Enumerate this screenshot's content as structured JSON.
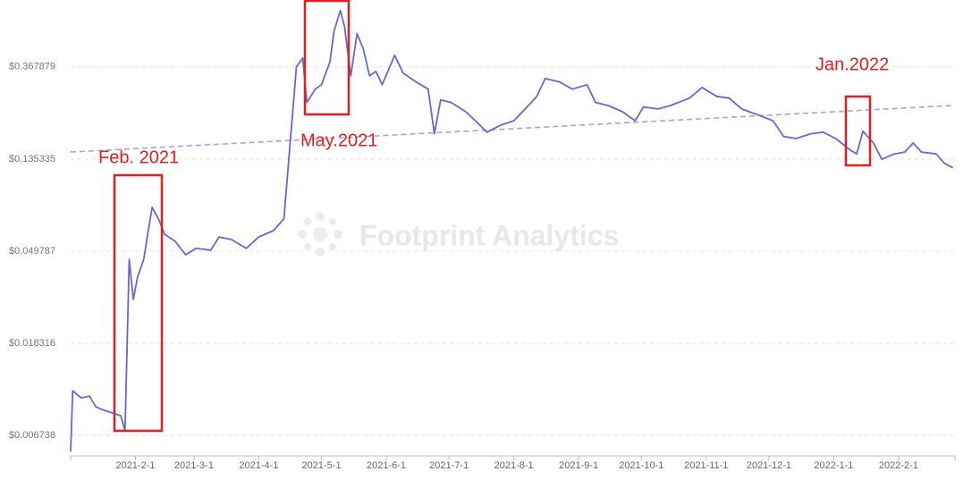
{
  "chart_data": {
    "type": "line",
    "log_y": true,
    "grid": true,
    "color": "#6767d6",
    "watermark": "Footprint Analytics",
    "annotations": [
      "Feb. 2021",
      "May.2021",
      "Jan.2022"
    ],
    "xlim": [
      "2021-1-1",
      "2022-2-28"
    ],
    "xticks": [
      "2021-2-1",
      "2021-3-1",
      "2021-4-1",
      "2021-5-1",
      "2021-6-1",
      "2021-7-1",
      "2021-8-1",
      "2021-9-1",
      "2021-10-1",
      "2021-11-1",
      "2021-12-1",
      "2022-1-1",
      "2022-2-1"
    ],
    "ylim": [
      0.0054,
      0.76
    ],
    "yticks": [
      {
        "value": 0.006738,
        "label": "$0.006738"
      },
      {
        "value": 0.018316,
        "label": "$0.018316"
      },
      {
        "value": 0.049787,
        "label": "$0.049787"
      },
      {
        "value": 0.135335,
        "label": "$0.135335"
      },
      {
        "value": 0.367879,
        "label": "$0.367879"
      }
    ],
    "x": [
      "2021-1-1",
      "2021-1-2",
      "2021-1-6",
      "2021-1-10",
      "2021-1-13",
      "2021-1-16",
      "2021-1-21",
      "2021-1-25",
      "2021-1-27",
      "2021-1-29",
      "2021-1-31",
      "2021-2-2",
      "2021-2-5",
      "2021-2-7",
      "2021-2-9",
      "2021-2-12",
      "2021-2-15",
      "2021-2-20",
      "2021-2-25",
      "2021-3-2",
      "2021-3-9",
      "2021-3-13",
      "2021-3-19",
      "2021-3-26",
      "2021-4-1",
      "2021-4-8",
      "2021-4-13",
      "2021-4-16",
      "2021-4-19",
      "2021-4-22",
      "2021-4-24",
      "2021-4-28",
      "2021-5-1",
      "2021-5-5",
      "2021-5-7",
      "2021-5-10",
      "2021-5-12",
      "2021-5-15",
      "2021-5-18",
      "2021-5-21",
      "2021-5-24",
      "2021-5-27",
      "2021-5-30",
      "2021-6-5",
      "2021-6-9",
      "2021-6-14",
      "2021-6-21",
      "2021-6-24",
      "2021-6-27",
      "2021-7-2",
      "2021-7-9",
      "2021-7-15",
      "2021-7-19",
      "2021-7-26",
      "2021-8-1",
      "2021-8-8",
      "2021-8-12",
      "2021-8-16",
      "2021-8-23",
      "2021-8-29",
      "2021-9-5",
      "2021-9-9",
      "2021-9-15",
      "2021-9-22",
      "2021-9-28",
      "2021-10-2",
      "2021-10-9",
      "2021-10-15",
      "2021-10-24",
      "2021-10-30",
      "2021-11-6",
      "2021-11-12",
      "2021-11-18",
      "2021-11-27",
      "2021-12-3",
      "2021-12-8",
      "2021-12-14",
      "2021-12-21",
      "2021-12-27",
      "2022-1-2",
      "2022-1-9",
      "2022-1-12",
      "2022-1-15",
      "2022-1-20",
      "2022-1-24",
      "2022-1-30",
      "2022-2-4",
      "2022-2-8",
      "2022-2-12",
      "2022-2-19",
      "2022-2-23",
      "2022-2-27"
    ],
    "values": [
      0.00566,
      0.01094,
      0.01013,
      0.01033,
      0.0092,
      0.00893,
      0.00859,
      0.00835,
      0.00708,
      0.0456,
      0.0295,
      0.0375,
      0.0456,
      0.0611,
      0.0801,
      0.0707,
      0.0598,
      0.0554,
      0.0479,
      0.0513,
      0.0503,
      0.0581,
      0.0565,
      0.0513,
      0.0581,
      0.0622,
      0.0707,
      0.161,
      0.368,
      0.405,
      0.25,
      0.289,
      0.303,
      0.387,
      0.542,
      0.678,
      0.57,
      0.334,
      0.527,
      0.447,
      0.334,
      0.35,
      0.303,
      0.417,
      0.344,
      0.318,
      0.289,
      0.178,
      0.257,
      0.25,
      0.226,
      0.199,
      0.181,
      0.196,
      0.205,
      0.242,
      0.267,
      0.324,
      0.312,
      0.289,
      0.303,
      0.25,
      0.242,
      0.226,
      0.205,
      0.238,
      0.233,
      0.242,
      0.262,
      0.294,
      0.267,
      0.262,
      0.233,
      0.216,
      0.205,
      0.173,
      0.169,
      0.178,
      0.181,
      0.169,
      0.149,
      0.143,
      0.183,
      0.161,
      0.135,
      0.143,
      0.146,
      0.161,
      0.146,
      0.143,
      0.129,
      0.123
    ],
    "trendline": {
      "color": "#a5a2ea",
      "x": [
        "2021-1-1",
        "2022-2-27"
      ],
      "values": [
        0.146,
        0.242
      ]
    }
  }
}
